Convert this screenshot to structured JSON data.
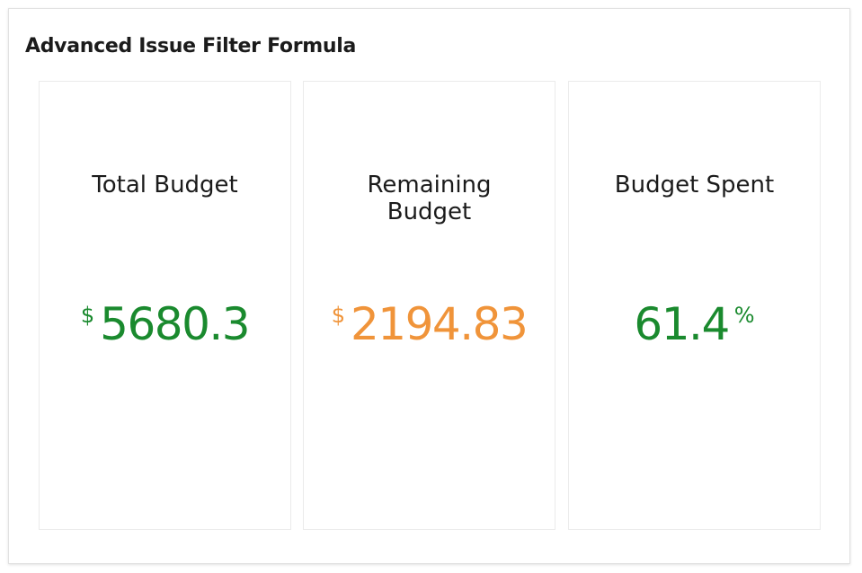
{
  "widget": {
    "title": "Advanced Issue Filter Formula"
  },
  "cards": [
    {
      "label": "Total Budget",
      "prefix": "$",
      "value": "5680.3",
      "suffix": "",
      "color": "#1a8a2e"
    },
    {
      "label": "Remaining Budget",
      "prefix": "$",
      "value": "2194.83",
      "suffix": "",
      "color": "#f0943a"
    },
    {
      "label": "Budget Spent",
      "prefix": "",
      "value": "61.4",
      "suffix": "%",
      "color": "#1a8a2e"
    }
  ]
}
